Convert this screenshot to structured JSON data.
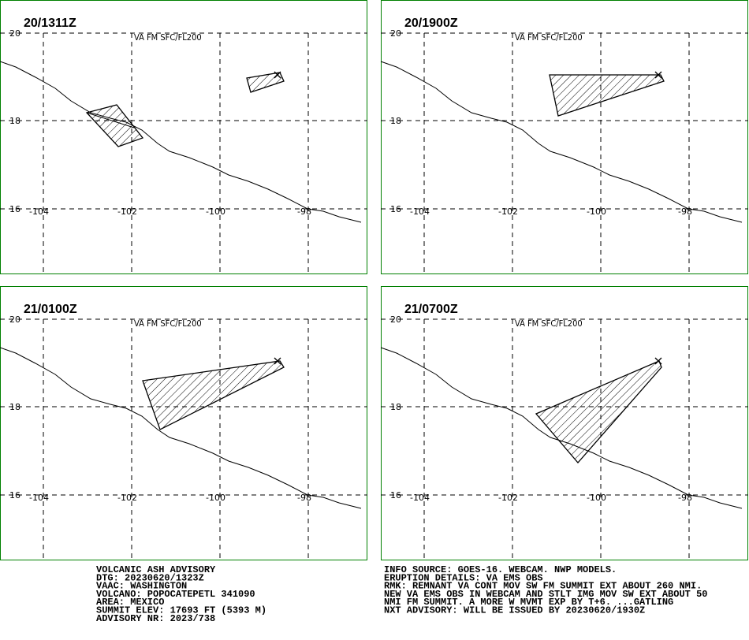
{
  "panels": [
    {
      "time": "20/1311Z",
      "label": "VA FM SFC/FL200"
    },
    {
      "time": "20/1900Z",
      "label": "VA FM SFC/FL200"
    },
    {
      "time": "21/0100Z",
      "label": "VA FM SFC/FL200"
    },
    {
      "time": "21/0700Z",
      "label": "VA FM SFC/FL200"
    }
  ],
  "lat_labels": [
    "20",
    "18",
    "16"
  ],
  "lon_labels": [
    "-104",
    "-102",
    "-100",
    "-98"
  ],
  "advisory": {
    "left": [
      "VOLCANIC ASH ADVISORY",
      "DTG: 20230620/1323Z",
      "VAAC: WASHINGTON",
      "VOLCANO: POPOCATEPETL 341090",
      "AREA: MEXICO",
      "SUMMIT ELEV: 17693 FT (5393 M)",
      "ADVISORY NR: 2023/738"
    ],
    "right": [
      "INFO SOURCE: GOES-16. WEBCAM. NWP MODELS.",
      "ERUPTION DETAILS: VA EMS OBS",
      "RMK: REMNANT VA CONT MOV SW FM SUMMIT EXT ABOUT 260 NMI.",
      "NEW VA EMS OBS IN WEBCAM AND STLT IMG MOV SW EXT ABOUT 50",
      "NMI FM SUMMIT. A MORE W MVMT EXP BY T+6. ...GATLING",
      "NXT ADVISORY: WILL BE ISSUED BY 20230620/1930Z"
    ]
  }
}
